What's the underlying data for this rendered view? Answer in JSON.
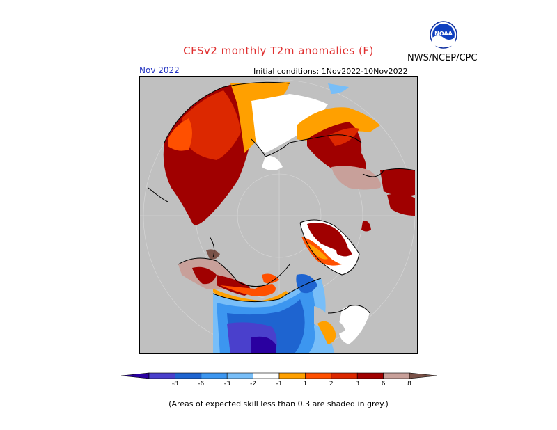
{
  "header": {
    "title": "CFSv2 monthly T2m anomalies (F)",
    "agency": "NWS/NCEP/CPC",
    "logo_text": "NOAA",
    "period": "Nov 2022",
    "initial_conditions": "Initial conditions: 1Nov2022-10Nov2022"
  },
  "colors": {
    "title": "#e03030",
    "period": "#2030c0",
    "map_background": "#c0c0c0",
    "unskilled_grey": "#c0c0c0",
    "ocean_low_skill": "#c0c0c0"
  },
  "legend": {
    "tick_labels": [
      "-8",
      "-6",
      "-3",
      "-2",
      "-1",
      "1",
      "2",
      "3",
      "6",
      "8"
    ],
    "bins": [
      {
        "color": "#2a00a0"
      },
      {
        "color": "#4a40cc"
      },
      {
        "color": "#1e64d0"
      },
      {
        "color": "#3c96f0"
      },
      {
        "color": "#78bef8"
      },
      {
        "color": "#ffffff"
      },
      {
        "color": "#ffa000"
      },
      {
        "color": "#ff5000"
      },
      {
        "color": "#dc2800"
      },
      {
        "color": "#a00000"
      },
      {
        "color": "#c8a09a"
      },
      {
        "color": "#7a5248"
      }
    ]
  },
  "footnote": "(Areas of expected skill less than 0.3 are shaded in grey.)"
}
